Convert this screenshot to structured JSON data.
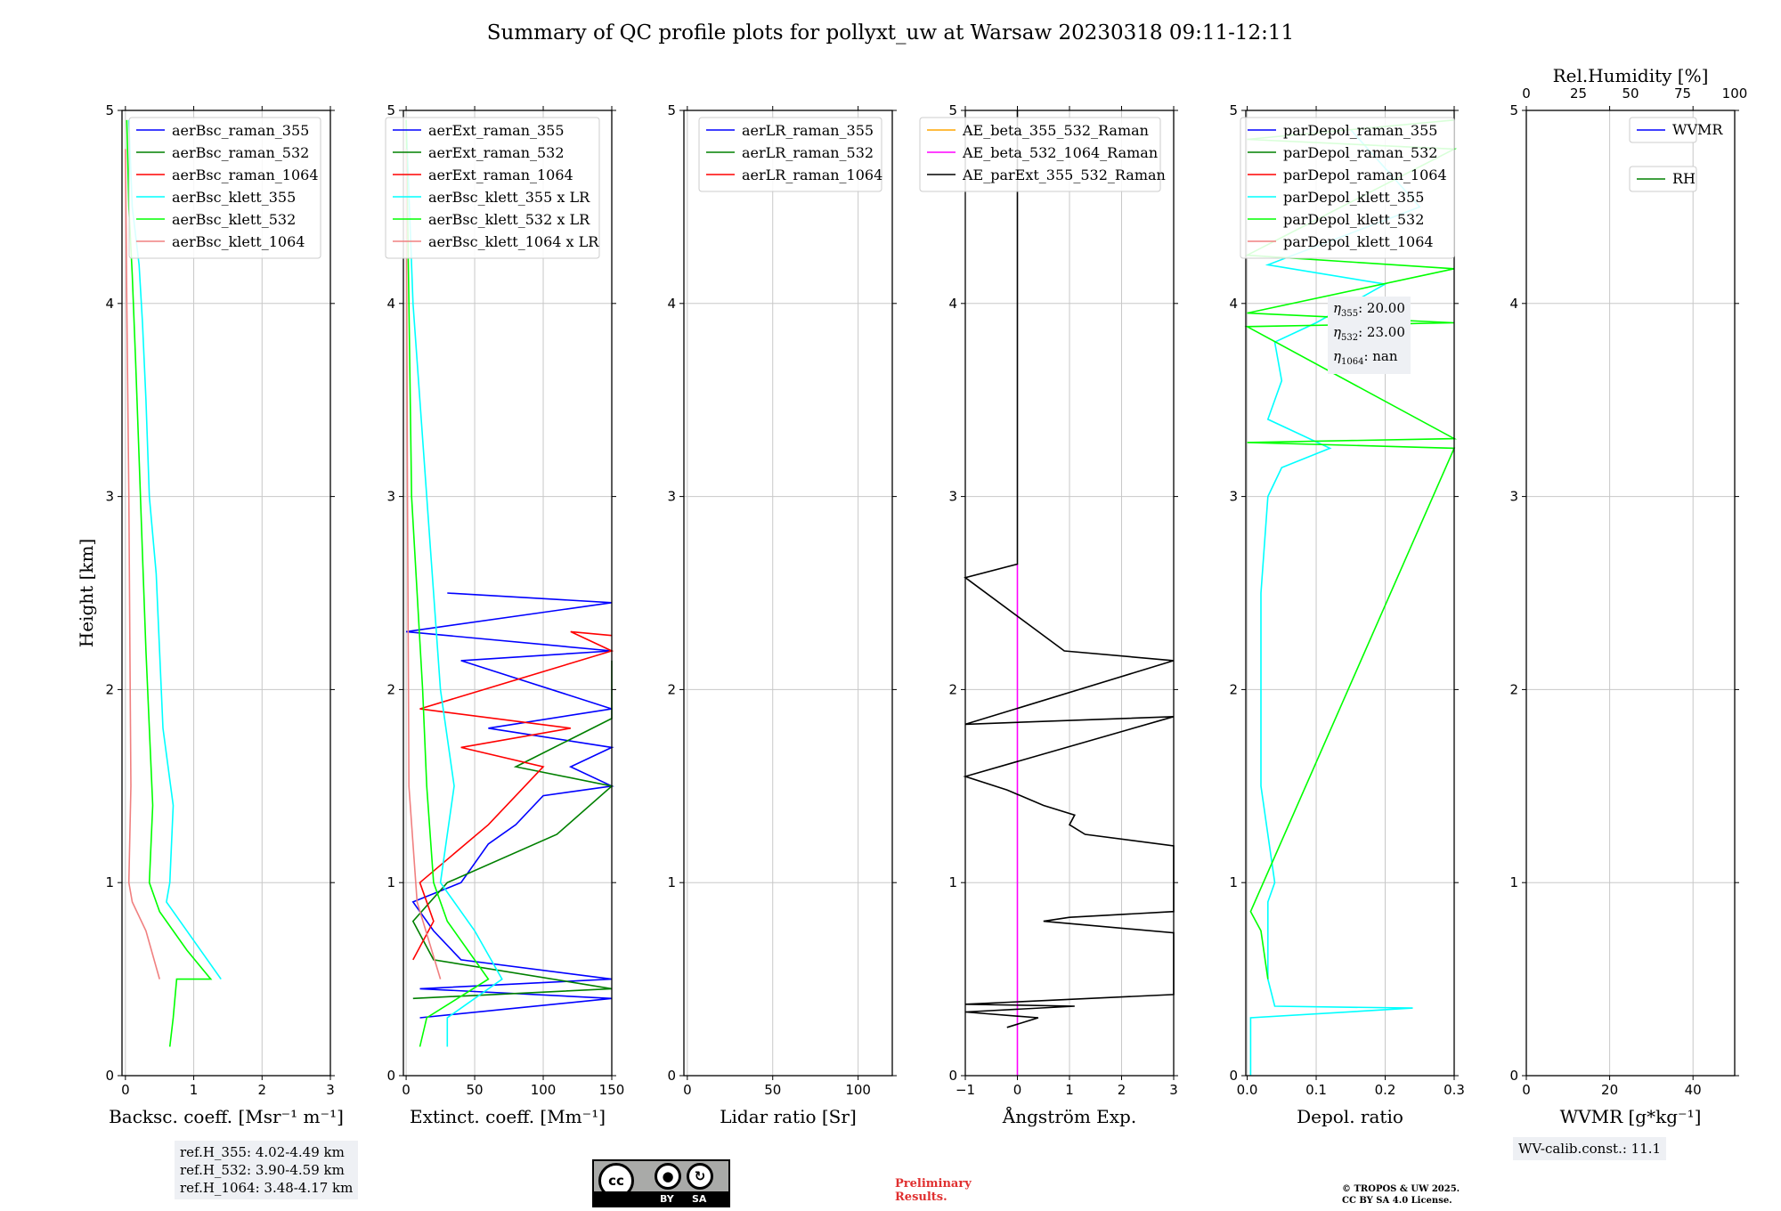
{
  "title": "Summary of QC profile plots for pollyxt_uw at Warsaw 20230318 09:11-12:11",
  "chart_data": [
    {
      "type": "line",
      "name": "backscatter",
      "xlabel": "Backsc. coeff. [Msr⁻¹ m⁻¹]",
      "ylabel": "Height [km]",
      "xlim": [
        -0.05,
        3
      ],
      "ylim": [
        0,
        5
      ],
      "xticks": [
        0,
        1,
        2,
        3
      ],
      "yticks": [
        0,
        1,
        2,
        3,
        4,
        5
      ],
      "legend": "top-right",
      "series": [
        {
          "name": "aerBsc_raman_355",
          "color": "#0000ff",
          "points": []
        },
        {
          "name": "aerBsc_raman_532",
          "color": "#008000",
          "points": []
        },
        {
          "name": "aerBsc_raman_1064",
          "color": "#ff0000",
          "points": []
        },
        {
          "name": "aerBsc_klett_355",
          "color": "#00ffff",
          "points": [
            [
              0.05,
              4.95
            ],
            [
              0.1,
              4.5
            ],
            [
              0.2,
              4.2
            ],
            [
              0.25,
              3.9
            ],
            [
              0.3,
              3.5
            ],
            [
              0.35,
              3.0
            ],
            [
              0.45,
              2.6
            ],
            [
              0.5,
              2.2
            ],
            [
              0.55,
              1.8
            ],
            [
              0.7,
              1.4
            ],
            [
              0.65,
              1.0
            ],
            [
              0.6,
              0.9
            ],
            [
              0.9,
              0.75
            ],
            [
              1.4,
              0.5
            ]
          ]
        },
        {
          "name": "aerBsc_klett_532",
          "color": "#00ff00",
          "points": [
            [
              0.02,
              4.95
            ],
            [
              0.05,
              4.5
            ],
            [
              0.1,
              4.15
            ],
            [
              0.15,
              3.7
            ],
            [
              0.2,
              3.2
            ],
            [
              0.25,
              2.7
            ],
            [
              0.3,
              2.2
            ],
            [
              0.35,
              1.8
            ],
            [
              0.4,
              1.4
            ],
            [
              0.35,
              1.0
            ],
            [
              0.5,
              0.85
            ],
            [
              0.9,
              0.65
            ],
            [
              1.25,
              0.5
            ],
            [
              0.75,
              0.5
            ],
            [
              0.7,
              0.3
            ],
            [
              0.65,
              0.15
            ]
          ]
        },
        {
          "name": "aerBsc_klett_1064",
          "color": "#f08080",
          "points": [
            [
              0.0,
              4.8
            ],
            [
              0.02,
              4.0
            ],
            [
              0.05,
              3.0
            ],
            [
              0.07,
              2.0
            ],
            [
              0.08,
              1.5
            ],
            [
              0.05,
              1.0
            ],
            [
              0.1,
              0.9
            ],
            [
              0.3,
              0.75
            ],
            [
              0.5,
              0.5
            ]
          ]
        }
      ]
    },
    {
      "type": "line",
      "name": "extinction",
      "xlabel": "Extinct. coeff. [Mm⁻¹]",
      "xlim": [
        -2,
        150
      ],
      "ylim": [
        0,
        5
      ],
      "xticks": [
        0,
        50,
        100,
        150
      ],
      "yticks": [
        0,
        1,
        2,
        3,
        4,
        5
      ],
      "legend": "top-right",
      "series": [
        {
          "name": "aerExt_raman_355",
          "color": "#0000ff",
          "points": [
            [
              10,
              0.3
            ],
            [
              150,
              0.4
            ],
            [
              10,
              0.45
            ],
            [
              150,
              0.5
            ],
            [
              40,
              0.6
            ],
            [
              20,
              0.75
            ],
            [
              5,
              0.9
            ],
            [
              40,
              1.0
            ],
            [
              60,
              1.2
            ],
            [
              80,
              1.3
            ],
            [
              100,
              1.45
            ],
            [
              150,
              1.5
            ],
            [
              120,
              1.6
            ],
            [
              150,
              1.7
            ],
            [
              60,
              1.8
            ],
            [
              150,
              1.9
            ],
            [
              40,
              2.15
            ],
            [
              150,
              2.2
            ],
            [
              0,
              2.3
            ],
            [
              150,
              2.45
            ],
            [
              30,
              2.5
            ]
          ]
        },
        {
          "name": "aerExt_raman_532",
          "color": "#008000",
          "points": [
            [
              5,
              0.4
            ],
            [
              150,
              0.45
            ],
            [
              20,
              0.6
            ],
            [
              5,
              0.8
            ],
            [
              30,
              1.0
            ],
            [
              110,
              1.25
            ],
            [
              150,
              1.5
            ],
            [
              80,
              1.6
            ],
            [
              150,
              1.85
            ],
            [
              150,
              2.15
            ]
          ]
        },
        {
          "name": "aerExt_raman_1064",
          "color": "#ff0000",
          "points": [
            [
              5,
              0.6
            ],
            [
              20,
              0.8
            ],
            [
              10,
              1.0
            ],
            [
              60,
              1.3
            ],
            [
              100,
              1.6
            ],
            [
              40,
              1.7
            ],
            [
              120,
              1.8
            ],
            [
              10,
              1.9
            ],
            [
              150,
              2.2
            ],
            [
              120,
              2.3
            ],
            [
              150,
              2.28
            ]
          ]
        },
        {
          "name": "aerBsc_klett_355 x LR",
          "color": "#00ffff",
          "points": [
            [
              30,
              0.15
            ],
            [
              30,
              0.3
            ],
            [
              70,
              0.5
            ],
            [
              50,
              0.75
            ],
            [
              25,
              1.0
            ],
            [
              35,
              1.5
            ],
            [
              25,
              2.0
            ],
            [
              20,
              2.5
            ],
            [
              15,
              3.0
            ],
            [
              10,
              3.5
            ],
            [
              5,
              4.0
            ],
            [
              0,
              4.95
            ]
          ]
        },
        {
          "name": "aerBsc_klett_532 x LR",
          "color": "#00ff00",
          "points": [
            [
              10,
              0.15
            ],
            [
              15,
              0.3
            ],
            [
              60,
              0.5
            ],
            [
              30,
              0.8
            ],
            [
              20,
              1.0
            ],
            [
              15,
              1.5
            ],
            [
              12,
              2.0
            ],
            [
              8,
              2.5
            ],
            [
              4,
              3.0
            ],
            [
              2,
              4.0
            ],
            [
              0,
              4.95
            ]
          ]
        },
        {
          "name": "aerBsc_klett_1064 x LR",
          "color": "#f08080",
          "points": [
            [
              0,
              4.8
            ],
            [
              1,
              3.0
            ],
            [
              2,
              1.5
            ],
            [
              8,
              0.9
            ],
            [
              25,
              0.5
            ]
          ]
        }
      ]
    },
    {
      "type": "line",
      "name": "lidar-ratio",
      "xlabel": "Lidar ratio [Sr]",
      "xlim": [
        -2,
        120
      ],
      "ylim": [
        0,
        5
      ],
      "xticks": [
        0,
        50,
        100
      ],
      "yticks": [
        0,
        1,
        2,
        3,
        4,
        5
      ],
      "legend": "top-right",
      "series": [
        {
          "name": "aerLR_raman_355",
          "color": "#0000ff",
          "points": []
        },
        {
          "name": "aerLR_raman_532",
          "color": "#008000",
          "points": []
        },
        {
          "name": "aerLR_raman_1064",
          "color": "#ff0000",
          "points": []
        }
      ]
    },
    {
      "type": "line",
      "name": "angstrom",
      "xlabel": "Ångström Exp.",
      "xlim": [
        -1,
        3
      ],
      "ylim": [
        0,
        5
      ],
      "xticks": [
        -1,
        0,
        1,
        2,
        3
      ],
      "yticks": [
        0,
        1,
        2,
        3,
        4,
        5
      ],
      "legend": "top-right",
      "series": [
        {
          "name": "AE_beta_355_532_Raman",
          "color": "#ffa500",
          "points": []
        },
        {
          "name": "AE_beta_532_1064_Raman",
          "color": "#ff00ff",
          "points": [
            [
              0,
              0
            ],
            [
              0,
              2.65
            ]
          ]
        },
        {
          "name": "AE_parExt_355_532_Raman",
          "color": "#000000",
          "points": [
            [
              -0.2,
              0.25
            ],
            [
              0.4,
              0.3
            ],
            [
              -1,
              0.33
            ],
            [
              1.1,
              0.36
            ],
            [
              -1,
              0.37
            ],
            [
              3,
              0.42
            ],
            [
              3,
              0.74
            ],
            [
              0.5,
              0.8
            ],
            [
              1,
              0.82
            ],
            [
              3,
              0.85
            ],
            [
              3,
              1.19
            ],
            [
              1.3,
              1.25
            ],
            [
              1.0,
              1.3
            ],
            [
              1.1,
              1.35
            ],
            [
              0.5,
              1.4
            ],
            [
              -0.2,
              1.48
            ],
            [
              -1,
              1.55
            ],
            [
              3,
              1.86
            ],
            [
              -1,
              1.82
            ],
            [
              3,
              2.15
            ],
            [
              0.9,
              2.2
            ],
            [
              -1,
              2.58
            ],
            [
              0,
              2.65
            ],
            [
              0,
              5
            ]
          ]
        }
      ]
    },
    {
      "type": "line",
      "name": "depolarization",
      "xlabel": "Depol. ratio",
      "xlim": [
        -0.002,
        0.3
      ],
      "ylim": [
        0,
        5
      ],
      "xticks": [
        0.0,
        0.1,
        0.2,
        0.3
      ],
      "yticks": [
        0,
        1,
        2,
        3,
        4,
        5
      ],
      "legend": "top-right",
      "series": [
        {
          "name": "parDepol_raman_355",
          "color": "#0000ff",
          "points": []
        },
        {
          "name": "parDepol_raman_532",
          "color": "#008000",
          "points": []
        },
        {
          "name": "parDepol_raman_1064",
          "color": "#ff0000",
          "points": []
        },
        {
          "name": "parDepol_klett_355",
          "color": "#00ffff",
          "points": [
            [
              0.005,
              0
            ],
            [
              0.005,
              0.3
            ],
            [
              0.24,
              0.35
            ],
            [
              0.04,
              0.36
            ],
            [
              0.03,
              0.5
            ],
            [
              0.03,
              0.9
            ],
            [
              0.04,
              1.0
            ],
            [
              0.02,
              1.5
            ],
            [
              0.02,
              2.0
            ],
            [
              0.02,
              2.5
            ],
            [
              0.03,
              3.0
            ],
            [
              0.05,
              3.15
            ],
            [
              0.12,
              3.25
            ],
            [
              0.03,
              3.4
            ],
            [
              0.05,
              3.6
            ],
            [
              0.04,
              3.8
            ],
            [
              0.1,
              3.9
            ],
            [
              0.2,
              4.1
            ],
            [
              0.03,
              4.2
            ],
            [
              0.25,
              4.5
            ],
            [
              0.15,
              4.9
            ]
          ]
        },
        {
          "name": "parDepol_klett_532",
          "color": "#00ff00",
          "points": [
            [
              0.03,
              0.5
            ],
            [
              0.02,
              0.75
            ],
            [
              0.005,
              0.85
            ],
            [
              0.3,
              3.25
            ],
            [
              0.0,
              3.28
            ],
            [
              0.3,
              3.3
            ],
            [
              0.0,
              3.88
            ],
            [
              0.3,
              3.9
            ],
            [
              0.0,
              3.95
            ],
            [
              0.3,
              4.18
            ],
            [
              0.0,
              4.25
            ],
            [
              0.3,
              4.8
            ],
            [
              0.0,
              4.85
            ],
            [
              0.3,
              4.95
            ]
          ]
        },
        {
          "name": "parDepol_klett_1064",
          "color": "#f08080",
          "points": []
        }
      ]
    },
    {
      "type": "line",
      "name": "water-vapor",
      "xlabel": "WVMR [g*kg⁻¹]",
      "x2label": "Rel.Humidity [%]",
      "xlim": [
        0,
        50
      ],
      "x2lim": [
        0,
        100
      ],
      "ylim": [
        0,
        5
      ],
      "xticks": [
        0,
        20,
        40
      ],
      "x2ticks": [
        0,
        25,
        50,
        75,
        100
      ],
      "yticks": [
        0,
        1,
        2,
        3,
        4,
        5
      ],
      "legend": "top-right",
      "series": [
        {
          "name": "WVMR",
          "color": "#0000ff",
          "points": []
        },
        {
          "name": "RH",
          "color": "#008000",
          "points": []
        }
      ]
    }
  ],
  "ref_heights": [
    "ref.H_355: 4.02-4.49 km",
    "ref.H_532: 3.90-4.59 km",
    "ref.H_1064: 3.48-4.17 km"
  ],
  "eta": {
    "e355": ": 20.00",
    "e532": ": 23.00",
    "e1064": ": nan"
  },
  "wv_calib": "WV-calib.const.: 11.1",
  "license_badge": {
    "by": "BY",
    "sa": "SA",
    "cc": "cc"
  },
  "preliminary": [
    "Preliminary",
    "Results."
  ],
  "copyright": [
    "© TROPOS & UW 2025.",
    "CC BY SA 4.0 License."
  ]
}
